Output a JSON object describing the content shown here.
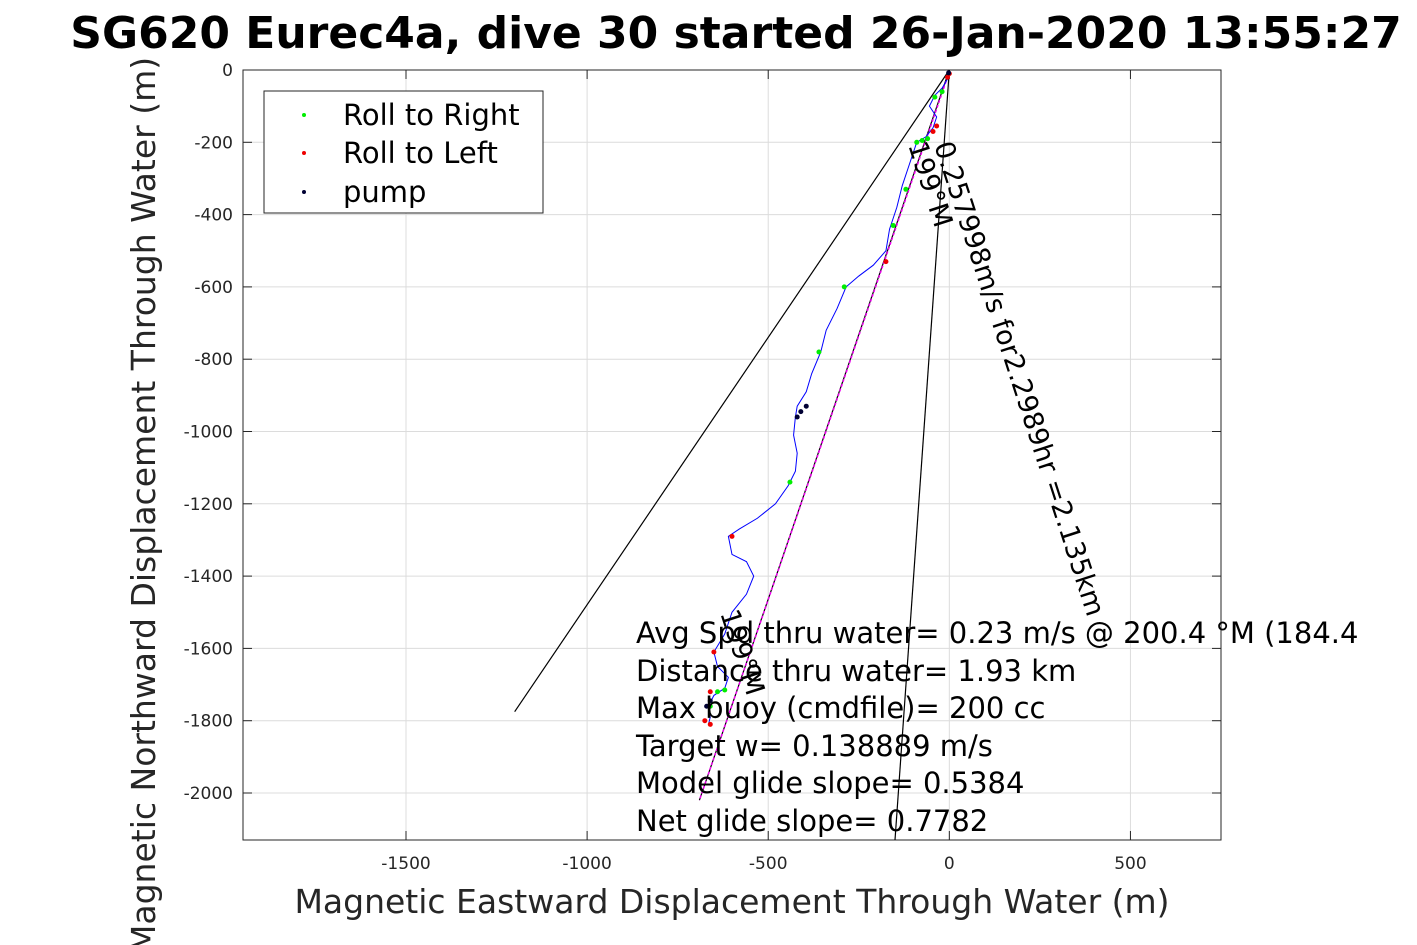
{
  "chart_data": {
    "type": "scatter",
    "title": "SG620 Eurec4a, dive 30 started 26-Jan-2020 13:55:27",
    "xlabel": "Magnetic Eastward Displacement Through Water (m)",
    "ylabel": "Magnetic Northward Displacement Through Water (m)",
    "xlim": [
      -1950,
      750
    ],
    "ylim": [
      -2130,
      0
    ],
    "xticks": [
      -1500,
      -1000,
      -500,
      0,
      500
    ],
    "yticks": [
      0,
      -200,
      -400,
      -600,
      -800,
      -1000,
      -1200,
      -1400,
      -1600,
      -1800,
      -2000
    ],
    "grid": true,
    "legend": {
      "position": "top-left",
      "entries": [
        {
          "label": "Roll to Right",
          "color": "#00ee00"
        },
        {
          "label": "Roll to Left",
          "color": "#ee0000"
        },
        {
          "label": "pump",
          "color": "#000033"
        }
      ]
    },
    "track": {
      "color": "#0000ff",
      "points": [
        [
          0,
          -5
        ],
        [
          -5,
          -25
        ],
        [
          -20,
          -50
        ],
        [
          -40,
          -70
        ],
        [
          -55,
          -100
        ],
        [
          -35,
          -130
        ],
        [
          -45,
          -160
        ],
        [
          -65,
          -185
        ],
        [
          -90,
          -200
        ],
        [
          -110,
          -260
        ],
        [
          -130,
          -320
        ],
        [
          -145,
          -380
        ],
        [
          -165,
          -440
        ],
        [
          -175,
          -500
        ],
        [
          -210,
          -540
        ],
        [
          -250,
          -570
        ],
        [
          -285,
          -600
        ],
        [
          -310,
          -660
        ],
        [
          -340,
          -720
        ],
        [
          -355,
          -780
        ],
        [
          -380,
          -840
        ],
        [
          -395,
          -890
        ],
        [
          -420,
          -930
        ],
        [
          -425,
          -960
        ],
        [
          -430,
          -1010
        ],
        [
          -420,
          -1060
        ],
        [
          -425,
          -1110
        ],
        [
          -445,
          -1150
        ],
        [
          -480,
          -1200
        ],
        [
          -530,
          -1240
        ],
        [
          -580,
          -1270
        ],
        [
          -610,
          -1290
        ],
        [
          -600,
          -1340
        ],
        [
          -560,
          -1360
        ],
        [
          -540,
          -1400
        ],
        [
          -560,
          -1450
        ],
        [
          -600,
          -1500
        ],
        [
          -620,
          -1560
        ],
        [
          -650,
          -1610
        ],
        [
          -640,
          -1650
        ],
        [
          -610,
          -1680
        ],
        [
          -620,
          -1710
        ],
        [
          -650,
          -1730
        ],
        [
          -665,
          -1760
        ],
        [
          -660,
          -1790
        ],
        [
          -665,
          -1810
        ]
      ]
    },
    "roll_right": [
      [
        -20,
        -60
      ],
      [
        -40,
        -75
      ],
      [
        -60,
        -190
      ],
      [
        -75,
        -195
      ],
      [
        -90,
        -200
      ],
      [
        -120,
        -330
      ],
      [
        -155,
        -430
      ],
      [
        -290,
        -600
      ],
      [
        -360,
        -780
      ],
      [
        -440,
        -1140
      ],
      [
        -640,
        -1720
      ],
      [
        -620,
        -1715
      ],
      [
        -660,
        -1760
      ]
    ],
    "roll_left": [
      [
        0,
        -10
      ],
      [
        -5,
        -20
      ],
      [
        -35,
        -155
      ],
      [
        -45,
        -170
      ],
      [
        -175,
        -530
      ],
      [
        -600,
        -1290
      ],
      [
        -650,
        -1610
      ],
      [
        -660,
        -1720
      ],
      [
        -675,
        -1800
      ],
      [
        -660,
        -1810
      ]
    ],
    "pump": [
      [
        -2,
        -8
      ],
      [
        -395,
        -930
      ],
      [
        -410,
        -945
      ],
      [
        -420,
        -960
      ],
      [
        -660,
        -1745
      ],
      [
        -670,
        -1760
      ]
    ],
    "current_line": {
      "color": "#ee00ee",
      "points": [
        [
          0,
          -5
        ],
        [
          -690,
          -2020
        ]
      ]
    },
    "cone_lines": [
      {
        "color": "#000000",
        "points": [
          [
            0,
            0
          ],
          [
            -1200,
            -1775
          ]
        ]
      },
      {
        "color": "#000000",
        "points": [
          [
            0,
            0
          ],
          [
            -150,
            -2130
          ]
        ]
      },
      {
        "color": "#000000",
        "points": [
          [
            0,
            0
          ],
          [
            -690,
            -2020
          ]
        ]
      }
    ],
    "annotations": [
      "Avg Spd thru water=  0.23 m/s @ 200.4 °M (184.4",
      "Distance thru water=  1.93 km",
      "Max buoy (cmdfile)= 200 cc",
      "Target w= 0.138889 m/s",
      "Model glide slope= 0.5384",
      "Net glide slope= 0.7782"
    ],
    "current_label": "0.257998m/s for2.2989hr =2.135km",
    "heading_label_top": "199°M",
    "heading_label_bottom": "199°M"
  }
}
